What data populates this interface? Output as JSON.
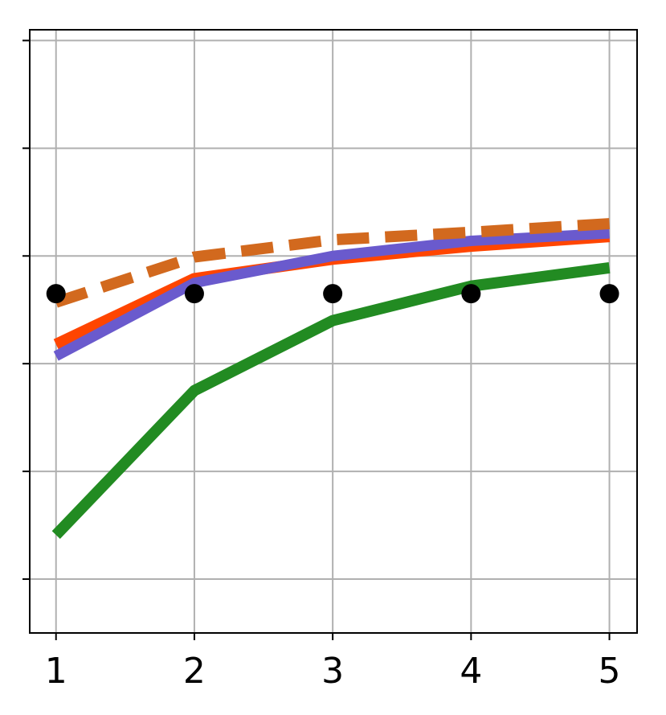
{
  "chart_data": {
    "type": "line",
    "x": [
      1,
      2,
      3,
      4,
      5
    ],
    "xlim": [
      0.81,
      5.2
    ],
    "xticks": [
      1,
      2,
      3,
      4,
      5
    ],
    "ylim": [
      -0.5,
      5.1
    ],
    "yticks": [
      0,
      1,
      2,
      3,
      4,
      5
    ],
    "grid": true,
    "series": [
      {
        "color": "#228b22",
        "linestyle": "solid",
        "linewidth": 14,
        "values": [
          0.41,
          1.75,
          2.4,
          2.72,
          2.89
        ]
      },
      {
        "color": "#ff4500",
        "linestyle": "solid",
        "linewidth": 14,
        "values": [
          2.18,
          2.79,
          2.97,
          3.09,
          3.18
        ]
      },
      {
        "color": "#6a5acd",
        "linestyle": "solid",
        "linewidth": 13,
        "values": [
          2.07,
          2.75,
          3.0,
          3.14,
          3.21
        ]
      },
      {
        "color": "#d2691e",
        "linestyle": "dashed",
        "linewidth": 14,
        "values": [
          2.57,
          2.99,
          3.15,
          3.22,
          3.3
        ]
      },
      {
        "color": "#000000",
        "linestyle": "none",
        "marker": "circle",
        "values": [
          2.65,
          2.65,
          2.65,
          2.65,
          2.65
        ]
      }
    ]
  }
}
